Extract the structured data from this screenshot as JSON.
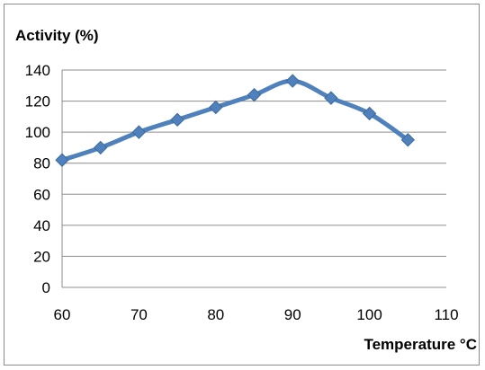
{
  "chart_data": {
    "type": "line",
    "ylabel": "Activity (%)",
    "xlabel": "Temperature °C",
    "xlim": [
      60,
      110
    ],
    "ylim": [
      0,
      140
    ],
    "x_ticks": [
      60,
      70,
      80,
      90,
      100,
      110
    ],
    "y_ticks": [
      0,
      20,
      40,
      60,
      80,
      100,
      120,
      140
    ],
    "grid": "horizontal",
    "legend": "none",
    "series": [
      {
        "color": "#4f81bd",
        "marker": "diamond",
        "smooth": true,
        "x": [
          60,
          65,
          70,
          75,
          80,
          85,
          90,
          95,
          100,
          105
        ],
        "y": [
          82,
          90,
          100,
          108,
          116,
          124,
          133,
          122,
          112,
          95
        ]
      }
    ]
  },
  "colors": {
    "line": "#4f81bd",
    "grid": "#8c8c8c",
    "axis": "#8c8c8c"
  }
}
